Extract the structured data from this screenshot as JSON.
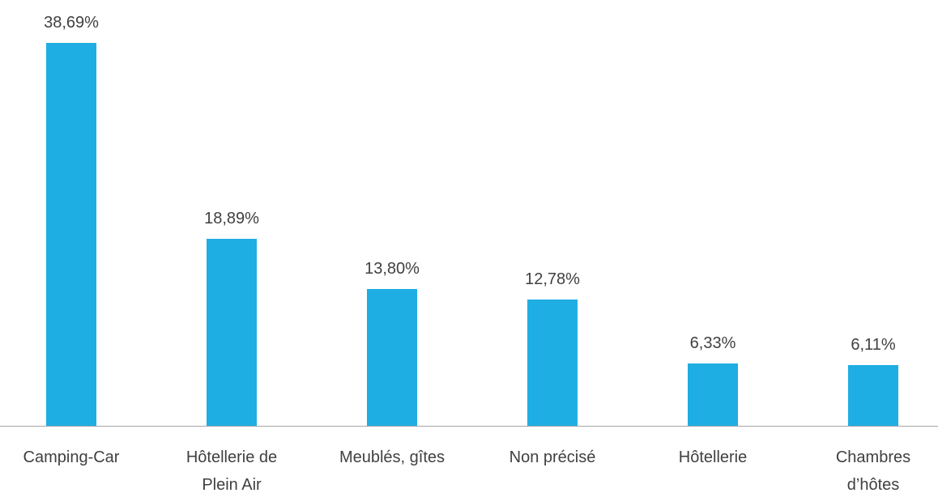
{
  "chart_data": {
    "type": "bar",
    "categories": [
      "Camping-Car",
      "Hôtellerie de\nPlein Air",
      "Meublés, gîtes",
      "Non précisé",
      "Hôtellerie",
      "Chambres\nd’hôtes"
    ],
    "values": [
      38.69,
      18.89,
      13.8,
      12.78,
      6.33,
      6.11
    ],
    "value_labels": [
      "38,69%",
      "18,89%",
      "13,80%",
      "12,78%",
      "6,33%",
      "6,11%"
    ],
    "color": "#1faee3"
  }
}
